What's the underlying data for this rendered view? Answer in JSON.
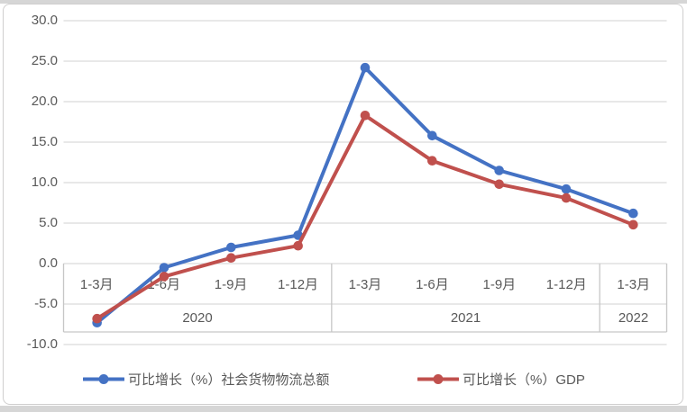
{
  "chart_data": {
    "type": "line",
    "title": "",
    "xlabel": "",
    "ylabel": "",
    "ylim": [
      -10,
      30
    ],
    "ytick_step": 5,
    "ytick_labels": [
      "30.0",
      "25.0",
      "20.0",
      "15.0",
      "10.0",
      "5.0",
      "0.0",
      "-5.0",
      "-10.0"
    ],
    "grid": true,
    "legend_position": "bottom",
    "categories": [
      "1-3月",
      "1-6月",
      "1-9月",
      "1-12月",
      "1-3月",
      "1-6月",
      "1-9月",
      "1-12月",
      "1-3月"
    ],
    "year_groups": [
      {
        "label": "2020",
        "span": 4
      },
      {
        "label": "2021",
        "span": 4
      },
      {
        "label": "2022",
        "span": 1
      }
    ],
    "series": [
      {
        "name": "可比增长（%）社会货物物流总额",
        "color": "#4472C4",
        "values": [
          -7.3,
          -0.5,
          2.0,
          3.5,
          24.2,
          15.8,
          11.5,
          9.2,
          6.2
        ]
      },
      {
        "name": "可比增长（%）GDP",
        "color": "#C0504D",
        "values": [
          -6.8,
          -1.6,
          0.7,
          2.2,
          18.3,
          12.7,
          9.8,
          8.1,
          4.8
        ]
      }
    ],
    "colors": {
      "gridline": "#d9d9d9",
      "table_border": "#c6c6c6",
      "text": "#595959",
      "frame_border": "#cfcece",
      "page_strip": "#d6d6d6"
    }
  }
}
